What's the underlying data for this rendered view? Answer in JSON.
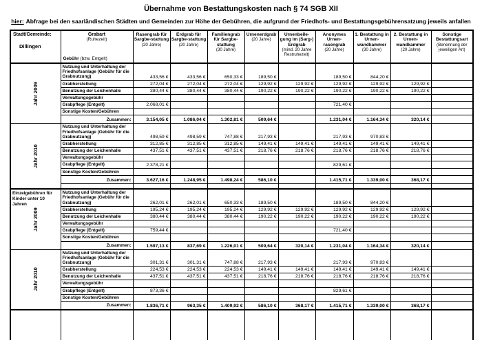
{
  "colors": {
    "ink": "#000000",
    "paper": "#ffffff"
  },
  "page": {
    "title": "Übernahme von Bestattungskosten nach § 74 SGB XII",
    "subtitle_label": "hier:",
    "subtitle_text": "Abfrage bei den saarländischen Städten und Gemeinden zur Höhe der Gebühren, die aufgrund der Friedhofs- und Bestattungsgebührensatzung jeweils anfallen"
  },
  "table": {
    "corner": {
      "municipality_label": "Stadt/Gemeinde:",
      "municipality_name": "Dillingen",
      "grabart_label": "Grabart",
      "grabart_sub": "(Ruhezeit)",
      "gebuehr_label": "Gebühr",
      "gebuehr_sub": "(bzw. Entgelt)"
    },
    "columns": [
      {
        "main": "Rasengrab für Sargbe-stattung",
        "sub": "(20 Jahre)"
      },
      {
        "main": "Erdgrab für Sargbe-stattung",
        "sub": "(20 Jahre)"
      },
      {
        "main": "Familiengrab für Sargbe-stattung",
        "sub": "(30 Jahre)"
      },
      {
        "main": "Urnenerdgrab",
        "sub": "(20 Jahre)"
      },
      {
        "main": "Urnenbeile-gung im (Sarg-) Erdgrab",
        "sub": "(mind. 20 Jahre Restruhezeit)"
      },
      {
        "main": "Anonymes Urnen-rasengrab",
        "sub": "(20 Jahre)"
      },
      {
        "main": "1. Bestattung in Urnen-wandkammer",
        "sub": "(30 Jahre)"
      },
      {
        "main": "2. Bestattung in Urnen-wandkammer",
        "sub": "(20 Jahre)"
      },
      {
        "main": "Sonstige Bestattungsart",
        "sub": "(Benennung der jeweiligen Art)"
      }
    ],
    "sections": [
      {
        "label": "",
        "blocks": [
          {
            "year": "Jahr 2009",
            "rows": [
              {
                "label": "Nutzung und Unterhaltung der\nFriedhofsanlage (Gebühr für die\nGrabnutzung)",
                "tall": true,
                "values": [
                  "433,56 €",
                  "433,56 €",
                  "650,33 €",
                  "189,50 €",
                  "",
                  "189,50 €",
                  "844,20 €",
                  "",
                  ""
                ]
              },
              {
                "label": "Grabherstellung",
                "values": [
                  "272,04 €",
                  "272,04 €",
                  "272,04 €",
                  "129,92 €",
                  "129,92 €",
                  "129,92 €",
                  "129,92 €",
                  "129,92 €",
                  ""
                ]
              },
              {
                "label": "Benutzung der Leichenhalle",
                "values": [
                  "380,44 €",
                  "380,44 €",
                  "380,44 €",
                  "190,22 €",
                  "190,22 €",
                  "190,22 €",
                  "190,22 €",
                  "190,22 €",
                  ""
                ]
              },
              {
                "label": "Verwaltungsgebühr",
                "values": [
                  "",
                  "",
                  "",
                  "",
                  "",
                  "",
                  "",
                  "",
                  ""
                ]
              },
              {
                "label": "Grabpflege (Entgelt)",
                "values": [
                  "2.068,01 €",
                  "",
                  "",
                  "",
                  "",
                  "721,40 €",
                  "",
                  "",
                  ""
                ]
              },
              {
                "label": "Sonstige Kosten/Gebühren",
                "values": [
                  "",
                  "",
                  "",
                  "",
                  "",
                  "",
                  "",
                  "",
                  ""
                ]
              },
              {
                "label": "Zusammen:",
                "total": true,
                "values": [
                  "3.154,05 €",
                  "1.086,04 €",
                  "1.302,81 €",
                  "509,64 €",
                  "",
                  "1.231,04 €",
                  "1.164,34 €",
                  "320,14 €",
                  ""
                ]
              }
            ]
          },
          {
            "year": "Jahr 2010",
            "spacer": true,
            "rows": [
              {
                "label": "Nutzung und Unterhaltung der\nFriedhofsanlage (Gebühr für die\nGrabnutzung)",
                "tall": true,
                "values": [
                  "498,59 €",
                  "498,59 €",
                  "747,88 €",
                  "217,93 €",
                  "",
                  "217,93 €",
                  "970,83 €",
                  "",
                  ""
                ]
              },
              {
                "label": "Grabherstellung",
                "values": [
                  "312,85 €",
                  "312,85 €",
                  "312,85 €",
                  "149,41 €",
                  "149,41 €",
                  "149,41 €",
                  "149,41 €",
                  "149,41 €",
                  ""
                ]
              },
              {
                "label": "Benutzung der Leichenhalle",
                "values": [
                  "437,51 €",
                  "437,51 €",
                  "437,51 €",
                  "218,76 €",
                  "218,76 €",
                  "218,76 €",
                  "218,76 €",
                  "218,76 €",
                  ""
                ]
              },
              {
                "label": "Verwaltungsgebühr",
                "values": [
                  "",
                  "",
                  "",
                  "",
                  "",
                  "",
                  "",
                  "",
                  ""
                ]
              },
              {
                "label": "Grabpflege (Entgelt)",
                "values": [
                  "2.378,21 €",
                  "",
                  "",
                  "",
                  "",
                  "829,61 €",
                  "",
                  "",
                  ""
                ]
              },
              {
                "label": "Sonstige Kosten/Gebühren",
                "values": [
                  "",
                  "",
                  "",
                  "",
                  "",
                  "",
                  "",
                  "",
                  ""
                ]
              },
              {
                "label": "Zusammen:",
                "total": true,
                "values": [
                  "3.627,16 €",
                  "1.248,95 €",
                  "1.498,24 €",
                  "586,10 €",
                  "",
                  "1.415,71 €",
                  "1.339,00 €",
                  "368,17 €",
                  ""
                ]
              }
            ]
          }
        ]
      },
      {
        "label": "Einzelgebühren für\nKinder unter 10 Jahren",
        "blocks": [
          {
            "year": "Jahr 2009",
            "rows": [
              {
                "label": "Nutzung und Unterhaltung der\nFriedhofsanlage (Gebühr für die\nGrabnutzung)",
                "tall": true,
                "values": [
                  "262,01 €",
                  "262,01 €",
                  "650,33 €",
                  "189,50 €",
                  "",
                  "189,50 €",
                  "844,20 €",
                  "",
                  ""
                ]
              },
              {
                "label": "Grabherstellung",
                "values": [
                  "195,24 €",
                  "195,24 €",
                  "195,24 €",
                  "129,92 €",
                  "129,92 €",
                  "129,92 €",
                  "129,92 €",
                  "129,92 €",
                  ""
                ]
              },
              {
                "label": "Benutzung der Leichenhalle",
                "values": [
                  "380,44 €",
                  "380,44 €",
                  "380,44 €",
                  "190,22 €",
                  "190,22 €",
                  "190,22 €",
                  "190,22 €",
                  "190,22 €",
                  ""
                ]
              },
              {
                "label": "Verwaltungsgebühr",
                "values": [
                  "",
                  "",
                  "",
                  "",
                  "",
                  "",
                  "",
                  "",
                  ""
                ]
              },
              {
                "label": "Grabpflege (Entgelt)",
                "values": [
                  "759,44 €",
                  "",
                  "",
                  "",
                  "",
                  "721,40 €",
                  "",
                  "",
                  ""
                ]
              },
              {
                "label": "Sonstige Kosten/Gebühren",
                "values": [
                  "",
                  "",
                  "",
                  "",
                  "",
                  "",
                  "",
                  "",
                  ""
                ]
              },
              {
                "label": "Zusammen:",
                "total": true,
                "values": [
                  "1.597,13 €",
                  "837,69 €",
                  "1.226,01 €",
                  "509,64 €",
                  "320,14 €",
                  "1.231,04 €",
                  "1.164,34 €",
                  "320,14 €",
                  ""
                ]
              }
            ]
          },
          {
            "year": "Jahr 2010",
            "rows": [
              {
                "label": "Nutzung und Unterhaltung der\nFriedhofsanlage (Gebühr für die\nGrabnutzung)",
                "tall": true,
                "values": [
                  "301,31 €",
                  "301,31 €",
                  "747,88 €",
                  "217,93 €",
                  "",
                  "217,93 €",
                  "970,83 €",
                  "",
                  ""
                ]
              },
              {
                "label": "Grabherstellung",
                "values": [
                  "224,53 €",
                  "224,53 €",
                  "224,53 €",
                  "149,41 €",
                  "149,41 €",
                  "149,41 €",
                  "149,41 €",
                  "149,41 €",
                  ""
                ]
              },
              {
                "label": "Benutzung der Leichenhalle",
                "values": [
                  "437,51 €",
                  "437,51 €",
                  "437,51 €",
                  "218,76 €",
                  "218,76 €",
                  "218,76 €",
                  "218,76 €",
                  "218,76 €",
                  ""
                ]
              },
              {
                "label": "Verwaltungsgebühr",
                "values": [
                  "",
                  "",
                  "",
                  "",
                  "",
                  "",
                  "",
                  "",
                  ""
                ]
              },
              {
                "label": "Grabpflege (Entgelt)",
                "values": [
                  "873,36 €",
                  "",
                  "",
                  "",
                  "",
                  "829,61 €",
                  "",
                  "",
                  ""
                ]
              },
              {
                "label": "Sonstige Kosten/Gebühren",
                "values": [
                  "",
                  "",
                  "",
                  "",
                  "",
                  "",
                  "",
                  "",
                  ""
                ]
              },
              {
                "label": "Zusammen:",
                "total": true,
                "values": [
                  "1.836,71 €",
                  "963,35 €",
                  "1.409,92 €",
                  "586,10 €",
                  "368,17 €",
                  "1.415,71 €",
                  "1.339,00 €",
                  "368,17 €",
                  ""
                ]
              }
            ]
          }
        ]
      },
      {
        "label": "",
        "blocks": [
          {
            "year": "",
            "rows": [
              {
                "label": "",
                "empty": true,
                "values": [
                  "",
                  "",
                  "",
                  "",
                  "",
                  "",
                  "",
                  "",
                  ""
                ]
              }
            ]
          }
        ]
      }
    ]
  }
}
